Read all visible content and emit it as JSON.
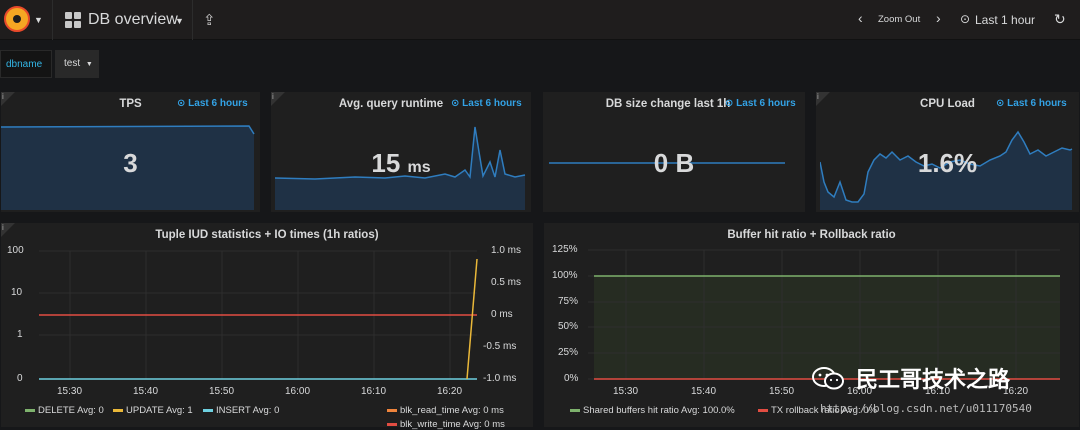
{
  "topbar": {
    "dashboard_title": "DB overview",
    "zoom_out": "Zoom Out",
    "time_range": "Last 1 hour"
  },
  "variables": {
    "label": "dbname",
    "value": "test"
  },
  "panels": {
    "tps": {
      "title": "TPS",
      "time_info": "Last 6 hours",
      "value": "3"
    },
    "query": {
      "title": "Avg. query runtime",
      "time_info": "Last 6 hours",
      "value": "15",
      "unit": "ms"
    },
    "dbsize": {
      "title": "DB size change last 1h",
      "time_info": "Last 6 hours",
      "value": "0 B"
    },
    "cpu": {
      "title": "CPU Load",
      "time_info": "Last 6 hours",
      "value": "1.6%"
    },
    "tuple": {
      "title": "Tuple IUD statistics + IO times (1h ratios)",
      "y_left": [
        "100",
        "10",
        "1",
        "0"
      ],
      "y_right": [
        "1.0 ms",
        "0.5 ms",
        "0 ms",
        "-0.5 ms",
        "-1.0 ms"
      ],
      "x_ticks": [
        "15:30",
        "15:40",
        "15:50",
        "16:00",
        "16:10",
        "16:20"
      ],
      "legend_left": [
        {
          "text": "DELETE  Avg: 0",
          "color": "#7eb26d"
        },
        {
          "text": "UPDATE  Avg: 1",
          "color": "#eab839"
        },
        {
          "text": "INSERT  Avg: 0",
          "color": "#6ed0e0"
        }
      ],
      "legend_right": [
        {
          "text": "blk_read_time  Avg: 0 ms",
          "color": "#ef843c"
        },
        {
          "text": "blk_write_time  Avg: 0 ms",
          "color": "#e24d42"
        }
      ]
    },
    "buffer": {
      "title": "Buffer hit ratio + Rollback ratio",
      "y_ticks": [
        "125%",
        "100%",
        "75%",
        "50%",
        "25%",
        "0%"
      ],
      "x_ticks": [
        "15:30",
        "15:40",
        "15:50",
        "16:00",
        "16:10",
        "16:20"
      ],
      "legend": [
        {
          "text": "Shared buffers hit ratio  Avg: 100.0%",
          "color": "#7eb26d"
        },
        {
          "text": "TX rollback ratio  Avg: 0%",
          "color": "#e24d42"
        }
      ]
    }
  },
  "watermark": {
    "text": "民工哥技术之路",
    "url": "https://blog.csdn.net/u011170540"
  },
  "colors": {
    "accent": "#33a2e5",
    "spark_fill": "#1f3145",
    "spark_line": "#2f7dbf"
  }
}
